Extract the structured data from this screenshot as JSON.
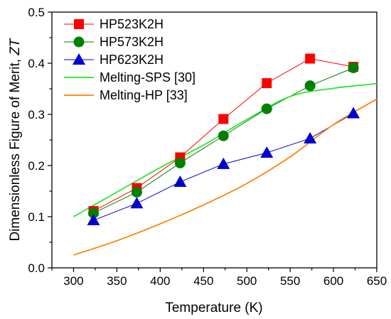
{
  "chart_data": {
    "type": "line",
    "xlabel": "Temperature (K)",
    "ylabel_main": "Dimensionless Figure of Merit, ",
    "ylabel_italic": "ZT",
    "xlim": [
      275,
      650
    ],
    "ylim": [
      0,
      0.5
    ],
    "xticks": [
      300,
      350,
      400,
      450,
      500,
      550,
      600,
      650
    ],
    "yticks": [
      0.0,
      0.1,
      0.2,
      0.3,
      0.4,
      0.5
    ],
    "xtick_labels": [
      "300",
      "350",
      "400",
      "450",
      "500",
      "550",
      "600",
      "650"
    ],
    "ytick_labels": [
      "0.0",
      "0.1",
      "0.2",
      "0.3",
      "0.4",
      "0.5"
    ],
    "legend_position": "top-left",
    "grid": false,
    "series": [
      {
        "name": "HP523K2H",
        "color": "#ff0000",
        "marker": "square",
        "x": [
          323,
          373,
          423,
          473,
          523,
          573,
          623
        ],
        "y": [
          0.111,
          0.156,
          0.216,
          0.291,
          0.361,
          0.409,
          0.393
        ]
      },
      {
        "name": "HP573K2H",
        "color": "#008000",
        "marker": "circle",
        "x": [
          323,
          373,
          423,
          473,
          523,
          573,
          623
        ],
        "y": [
          0.107,
          0.148,
          0.205,
          0.258,
          0.311,
          0.356,
          0.391
        ]
      },
      {
        "name": "HP623K2H",
        "color": "#0000cc",
        "marker": "triangle",
        "x": [
          323,
          373,
          423,
          473,
          523,
          573,
          623
        ],
        "y": [
          0.093,
          0.126,
          0.168,
          0.203,
          0.225,
          0.253,
          0.302
        ]
      },
      {
        "name": "Melting-SPS [30]",
        "color": "#22e622",
        "marker": "none",
        "x": [
          300,
          350,
          400,
          450,
          500,
          550,
          600,
          650
        ],
        "y": [
          0.1,
          0.148,
          0.196,
          0.24,
          0.29,
          0.335,
          0.351,
          0.36
        ]
      },
      {
        "name": "Melting-HP [33]",
        "color": "#ff8000",
        "marker": "none",
        "x": [
          300,
          350,
          400,
          450,
          500,
          550,
          600,
          650
        ],
        "y": [
          0.025,
          0.053,
          0.086,
          0.123,
          0.165,
          0.217,
          0.28,
          0.33
        ]
      }
    ]
  }
}
